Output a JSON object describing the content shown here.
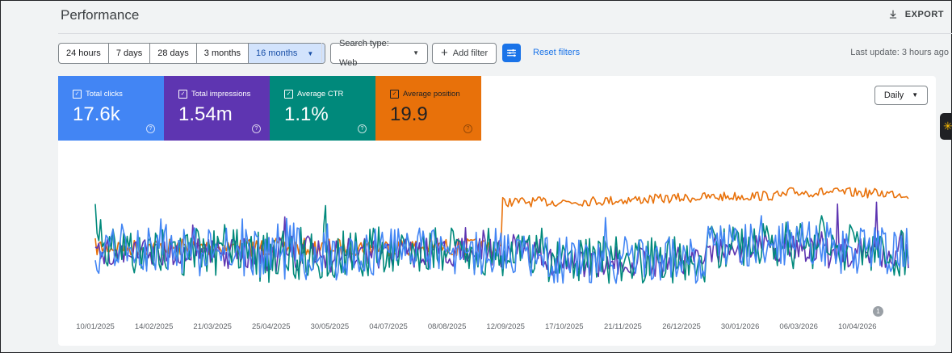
{
  "header": {
    "title": "Performance",
    "export_label": "EXPORT"
  },
  "toolbar": {
    "ranges": [
      "24 hours",
      "7 days",
      "28 days",
      "3 months",
      "16 months"
    ],
    "active_range": "16 months",
    "search_type": "Search type: Web",
    "add_filter": "Add filter",
    "reset_filters": "Reset filters",
    "last_update": "Last update: 3 hours ago"
  },
  "metrics": [
    {
      "label": "Total clicks",
      "value": "17.6k",
      "color": "#4285f4",
      "checked": true
    },
    {
      "label": "Total impressions",
      "value": "1.54m",
      "color": "#5e35b1",
      "checked": true
    },
    {
      "label": "Average CTR",
      "value": "1.1%",
      "color": "#00897b",
      "checked": true
    },
    {
      "label": "Average position",
      "value": "19.9",
      "color": "#e8710a",
      "checked": true
    }
  ],
  "granularity": "Daily",
  "annotation_badge": "1",
  "chart_data": {
    "type": "line",
    "x_ticks": [
      "10/01/2025",
      "14/02/2025",
      "21/03/2025",
      "25/04/2025",
      "30/05/2025",
      "04/07/2025",
      "08/08/2025",
      "12/09/2025",
      "17/10/2025",
      "21/11/2025",
      "26/12/2025",
      "30/01/2026",
      "06/03/2026",
      "10/04/2026"
    ],
    "series": [
      {
        "name": "Total clicks",
        "color": "#4285f4"
      },
      {
        "name": "Total impressions",
        "color": "#5e35b1"
      },
      {
        "name": "Average CTR",
        "color": "#00897b"
      },
      {
        "name": "Average position",
        "color": "#e8710a"
      }
    ],
    "y_axes_hidden": true,
    "grid": false
  }
}
